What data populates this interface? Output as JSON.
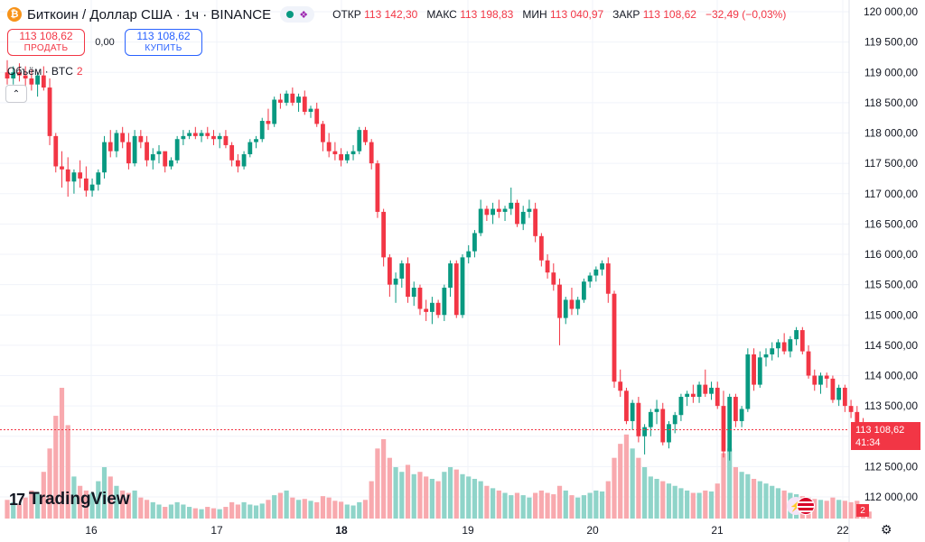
{
  "header": {
    "coin_symbol": "₿",
    "title": "Биткоин / Доллар США · 1ч · BINANCE",
    "ohlc": [
      {
        "label": "ОТКР",
        "value": "113 142,30"
      },
      {
        "label": "МАКС",
        "value": "113 198,83"
      },
      {
        "label": "МИН",
        "value": "113 040,97"
      },
      {
        "label": "ЗАКР",
        "value": "113 108,62"
      }
    ],
    "change": "−32,49 (−0,03%)"
  },
  "trade": {
    "sell_price": "113 108,62",
    "sell_label": "ПРОДАТЬ",
    "spread": "0,00",
    "buy_price": "113 108,62",
    "buy_label": "КУПИТЬ"
  },
  "volume_legend": {
    "label": "Объём · BTC",
    "count": "2"
  },
  "collapse_icon": "chevron-up-icon",
  "logo": {
    "mark": "17",
    "text": "TradingView"
  },
  "price_tag": {
    "price": "113 108,62",
    "countdown": "41:34"
  },
  "volume_tag": "2",
  "colors": {
    "up": "#089981",
    "down": "#f23645",
    "up_vol": "#8fd4c9",
    "down_vol": "#f8a9ae",
    "grid": "#f0f3fa"
  },
  "chart_data": {
    "type": "candlestick",
    "y_axis": {
      "range": [
        111850,
        120200
      ],
      "tick_labels": [
        "112 000,00",
        "112 500,00",
        "113 000,00",
        "113 500,00",
        "114 000,00",
        "114 500,00",
        "115 000,00",
        "115 500,00",
        "116 000,00",
        "116 500,00",
        "117 000,00",
        "117 500,00",
        "118 000,00",
        "118 500,00",
        "119 000,00",
        "119 500,00",
        "120 000,00"
      ],
      "tick_values": [
        112000,
        112500,
        113000,
        113500,
        114000,
        114500,
        115000,
        115500,
        116000,
        116500,
        117000,
        117500,
        118000,
        118500,
        119000,
        119500,
        120000
      ]
    },
    "x_axis": {
      "labels": [
        "16",
        "17",
        "18",
        "19",
        "20",
        "21",
        "22"
      ],
      "bold": [
        false,
        false,
        true,
        false,
        false,
        false,
        false
      ],
      "range_hours": [
        0,
        158
      ]
    },
    "last_price": 113108.62,
    "candles": [
      [
        119000,
        119200,
        118800,
        118900,
        40
      ],
      [
        118900,
        119100,
        118800,
        119000,
        35
      ],
      [
        119000,
        119150,
        118850,
        118950,
        30
      ],
      [
        118950,
        119100,
        118750,
        118900,
        45
      ],
      [
        118900,
        119050,
        118700,
        118800,
        60
      ],
      [
        118800,
        119000,
        118600,
        118950,
        55
      ],
      [
        118950,
        119100,
        118700,
        118750,
        100
      ],
      [
        118750,
        118900,
        117800,
        117950,
        150
      ],
      [
        117950,
        118000,
        117350,
        117450,
        220
      ],
      [
        117450,
        117700,
        117100,
        117400,
        280
      ],
      [
        117400,
        117600,
        116950,
        117200,
        200
      ],
      [
        117200,
        117400,
        117000,
        117350,
        90
      ],
      [
        117350,
        117550,
        117100,
        117250,
        70
      ],
      [
        117250,
        117450,
        116950,
        117050,
        60
      ],
      [
        117050,
        117250,
        116950,
        117150,
        55
      ],
      [
        117150,
        117400,
        117050,
        117350,
        80
      ],
      [
        117350,
        117950,
        117250,
        117850,
        110
      ],
      [
        117850,
        118050,
        117600,
        117700,
        90
      ],
      [
        117700,
        118050,
        117600,
        118000,
        70
      ],
      [
        118000,
        118100,
        117750,
        117850,
        60
      ],
      [
        117850,
        118000,
        117400,
        117500,
        55
      ],
      [
        117500,
        118050,
        117450,
        117950,
        60
      ],
      [
        117950,
        118050,
        117750,
        117850,
        45
      ],
      [
        117850,
        117950,
        117450,
        117550,
        40
      ],
      [
        117550,
        117750,
        117400,
        117650,
        35
      ],
      [
        117650,
        117800,
        117500,
        117700,
        30
      ],
      [
        117700,
        117650,
        117350,
        117450,
        25
      ],
      [
        117450,
        117600,
        117400,
        117550,
        30
      ],
      [
        117550,
        117950,
        117500,
        117900,
        35
      ],
      [
        117900,
        118050,
        117800,
        117950,
        30
      ],
      [
        117950,
        118050,
        117900,
        118000,
        25
      ],
      [
        118000,
        118100,
        117900,
        117950,
        22
      ],
      [
        117950,
        118050,
        117850,
        118000,
        20
      ],
      [
        118000,
        118100,
        117900,
        117950,
        25
      ],
      [
        117950,
        118050,
        117800,
        117900,
        22
      ],
      [
        117900,
        118000,
        117750,
        117950,
        20
      ],
      [
        117950,
        118050,
        117750,
        117800,
        25
      ],
      [
        117800,
        117850,
        117450,
        117550,
        35
      ],
      [
        117550,
        117650,
        117350,
        117450,
        30
      ],
      [
        117450,
        117700,
        117400,
        117650,
        35
      ],
      [
        117650,
        117900,
        117600,
        117850,
        30
      ],
      [
        117850,
        117950,
        117750,
        117900,
        28
      ],
      [
        117900,
        118250,
        117850,
        118200,
        32
      ],
      [
        118200,
        118400,
        118050,
        118150,
        40
      ],
      [
        118150,
        118600,
        118100,
        118550,
        50
      ],
      [
        118550,
        118650,
        118400,
        118500,
        55
      ],
      [
        118500,
        118700,
        118450,
        118650,
        60
      ],
      [
        118650,
        118750,
        118450,
        118500,
        45
      ],
      [
        118500,
        118650,
        118350,
        118600,
        40
      ],
      [
        118600,
        118700,
        118300,
        118350,
        42
      ],
      [
        118350,
        118450,
        118250,
        118400,
        38
      ],
      [
        118400,
        118500,
        118100,
        118150,
        35
      ],
      [
        118150,
        118200,
        117700,
        117850,
        48
      ],
      [
        117850,
        118000,
        117600,
        117700,
        45
      ],
      [
        117700,
        117850,
        117550,
        117650,
        38
      ],
      [
        117650,
        117750,
        117450,
        117550,
        36
      ],
      [
        117550,
        117700,
        117500,
        117650,
        30
      ],
      [
        117650,
        117800,
        117550,
        117700,
        28
      ],
      [
        117700,
        118100,
        117650,
        118050,
        35
      ],
      [
        118050,
        118100,
        117800,
        117850,
        40
      ],
      [
        117850,
        117900,
        117400,
        117500,
        80
      ],
      [
        117500,
        117550,
        116600,
        116700,
        150
      ],
      [
        116700,
        116750,
        115800,
        115950,
        170
      ],
      [
        115950,
        116000,
        115300,
        115500,
        130
      ],
      [
        115500,
        115700,
        115200,
        115600,
        110
      ],
      [
        115600,
        115900,
        115450,
        115850,
        100
      ],
      [
        115850,
        115950,
        115200,
        115300,
        115
      ],
      [
        115300,
        115550,
        115150,
        115450,
        95
      ],
      [
        115450,
        115500,
        115000,
        115100,
        100
      ],
      [
        115100,
        115250,
        114900,
        115050,
        90
      ],
      [
        115050,
        115300,
        114850,
        115200,
        85
      ],
      [
        115200,
        115250,
        114950,
        115000,
        80
      ],
      [
        115000,
        115500,
        114900,
        115450,
        100
      ],
      [
        115450,
        115900,
        115300,
        115850,
        110
      ],
      [
        115850,
        115900,
        114950,
        115000,
        105
      ],
      [
        115000,
        116000,
        114950,
        115950,
        95
      ],
      [
        115950,
        116150,
        115850,
        116050,
        90
      ],
      [
        116050,
        116400,
        115950,
        116350,
        85
      ],
      [
        116350,
        116900,
        116300,
        116750,
        80
      ],
      [
        116750,
        116800,
        116550,
        116650,
        70
      ],
      [
        116650,
        116850,
        116500,
        116750,
        65
      ],
      [
        116750,
        116900,
        116600,
        116700,
        60
      ],
      [
        116700,
        116800,
        116550,
        116750,
        55
      ],
      [
        116750,
        117100,
        116650,
        116850,
        50
      ],
      [
        116850,
        116900,
        116450,
        116500,
        55
      ],
      [
        116500,
        116800,
        116400,
        116700,
        50
      ],
      [
        116700,
        116900,
        116600,
        116750,
        45
      ],
      [
        116750,
        116850,
        116200,
        116300,
        55
      ],
      [
        116300,
        116350,
        115800,
        115900,
        60
      ],
      [
        115900,
        116000,
        115600,
        115700,
        55
      ],
      [
        115700,
        115850,
        115400,
        115500,
        52
      ],
      [
        115500,
        115600,
        114500,
        114950,
        70
      ],
      [
        114950,
        115300,
        114850,
        115250,
        60
      ],
      [
        115250,
        115450,
        115000,
        115100,
        50
      ],
      [
        115100,
        115300,
        115000,
        115250,
        45
      ],
      [
        115250,
        115600,
        115200,
        115550,
        50
      ],
      [
        115550,
        115700,
        115450,
        115650,
        55
      ],
      [
        115650,
        115800,
        115550,
        115750,
        60
      ],
      [
        115750,
        115900,
        115650,
        115850,
        58
      ],
      [
        115850,
        115950,
        115200,
        115350,
        80
      ],
      [
        115350,
        115400,
        113800,
        113900,
        130
      ],
      [
        113900,
        114100,
        113650,
        113750,
        160
      ],
      [
        113750,
        113800,
        113200,
        113250,
        180
      ],
      [
        113250,
        113600,
        113100,
        113550,
        150
      ],
      [
        113550,
        113650,
        112900,
        113000,
        130
      ],
      [
        113000,
        113200,
        112700,
        113150,
        110
      ],
      [
        113150,
        113450,
        113000,
        113400,
        90
      ],
      [
        113400,
        113600,
        113200,
        113450,
        85
      ],
      [
        113450,
        113550,
        112850,
        112900,
        80
      ],
      [
        112900,
        113250,
        112800,
        113200,
        75
      ],
      [
        113200,
        113400,
        113050,
        113350,
        70
      ],
      [
        113350,
        113700,
        113250,
        113650,
        65
      ],
      [
        113650,
        113750,
        113500,
        113700,
        60
      ],
      [
        113700,
        113850,
        113550,
        113650,
        55
      ],
      [
        113650,
        113900,
        113550,
        113850,
        55
      ],
      [
        113850,
        114100,
        113650,
        113700,
        60
      ],
      [
        113700,
        113900,
        113600,
        113800,
        58
      ],
      [
        113800,
        113900,
        113450,
        113500,
        75
      ],
      [
        113500,
        113750,
        112650,
        112750,
        140
      ],
      [
        112750,
        113700,
        112600,
        113650,
        150
      ],
      [
        113650,
        113700,
        113150,
        113250,
        110
      ],
      [
        113250,
        113500,
        113150,
        113450,
        100
      ],
      [
        113450,
        114450,
        113400,
        114350,
        95
      ],
      [
        114350,
        114450,
        113750,
        113850,
        85
      ],
      [
        113850,
        114400,
        113800,
        114300,
        80
      ],
      [
        114300,
        114450,
        114150,
        114350,
        75
      ],
      [
        114350,
        114550,
        114250,
        114450,
        70
      ],
      [
        114450,
        114600,
        114300,
        114550,
        65
      ],
      [
        114550,
        114700,
        114350,
        114400,
        60
      ],
      [
        114400,
        114650,
        114300,
        114600,
        55
      ],
      [
        114600,
        114800,
        114500,
        114750,
        52
      ],
      [
        114750,
        114800,
        114350,
        114400,
        48
      ],
      [
        114400,
        114500,
        113950,
        114000,
        45
      ],
      [
        114000,
        114100,
        113750,
        113850,
        42
      ],
      [
        113850,
        114050,
        113700,
        114000,
        40
      ],
      [
        114000,
        114050,
        113800,
        113950,
        38
      ],
      [
        113950,
        114000,
        113550,
        113600,
        45
      ],
      [
        113600,
        113850,
        113500,
        113800,
        40
      ],
      [
        113800,
        113850,
        113400,
        113500,
        38
      ],
      [
        113500,
        113600,
        113300,
        113400,
        35
      ],
      [
        113400,
        113500,
        113150,
        113200,
        38
      ],
      [
        113200,
        113300,
        113050,
        113150,
        30
      ],
      [
        113150,
        113200,
        113050,
        113110,
        15
      ]
    ]
  }
}
